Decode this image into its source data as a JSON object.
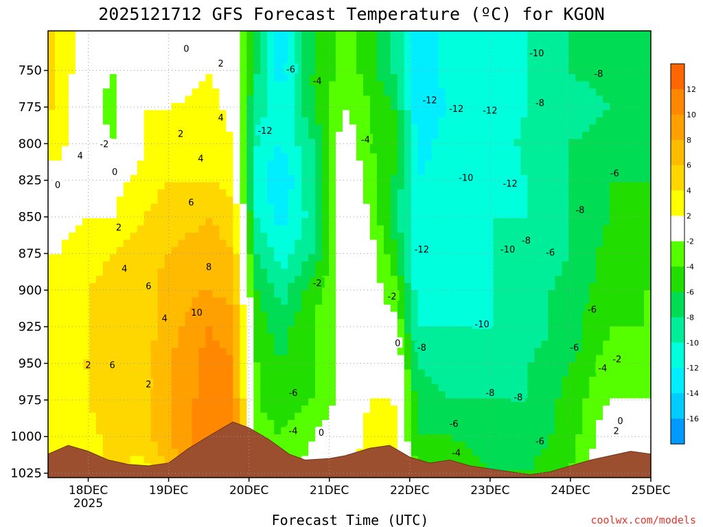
{
  "chart_data": {
    "type": "contour",
    "title": "2025121712 GFS Forecast Temperature (ºC) for KGON",
    "xlabel": "Forecast Time (UTC)",
    "ylabel": "",
    "credit": "coolwx.com/models",
    "x_ticks": [
      {
        "label": "18DEC",
        "sub": "2025",
        "day": 18
      },
      {
        "label": "19DEC",
        "sub": "",
        "day": 19
      },
      {
        "label": "20DEC",
        "sub": "",
        "day": 20
      },
      {
        "label": "21DEC",
        "sub": "",
        "day": 21
      },
      {
        "label": "22DEC",
        "sub": "",
        "day": 22
      },
      {
        "label": "23DEC",
        "sub": "",
        "day": 23
      },
      {
        "label": "24DEC",
        "sub": "",
        "day": 24
      },
      {
        "label": "25DEC",
        "sub": "",
        "day": 25
      }
    ],
    "xlim": [
      17.5,
      25.0
    ],
    "y_ticks": [
      750,
      775,
      800,
      825,
      850,
      875,
      900,
      925,
      950,
      975,
      1000,
      1025
    ],
    "ylim": [
      1028,
      723
    ],
    "colorbar": {
      "levels": [
        12,
        10,
        8,
        6,
        4,
        2,
        -2,
        -4,
        -6,
        -8,
        -10,
        -12,
        -14,
        -16
      ],
      "bands": [
        {
          "lo": 12,
          "hi": 14,
          "color": "#ff6600"
        },
        {
          "lo": 10,
          "hi": 12,
          "color": "#ff8800"
        },
        {
          "lo": 8,
          "hi": 10,
          "color": "#ffa000"
        },
        {
          "lo": 6,
          "hi": 8,
          "color": "#ffbb00"
        },
        {
          "lo": 4,
          "hi": 6,
          "color": "#ffd700"
        },
        {
          "lo": 2,
          "hi": 4,
          "color": "#ffff00"
        },
        {
          "lo": -2,
          "hi": 2,
          "color": "#ffffff"
        },
        {
          "lo": -4,
          "hi": -2,
          "color": "#55ff00"
        },
        {
          "lo": -6,
          "hi": -4,
          "color": "#22dd00"
        },
        {
          "lo": -8,
          "hi": -6,
          "color": "#00dd55"
        },
        {
          "lo": -10,
          "hi": -8,
          "color": "#00ee99"
        },
        {
          "lo": -12,
          "hi": -10,
          "color": "#00ffdd"
        },
        {
          "lo": -14,
          "hi": -12,
          "color": "#00eeff"
        },
        {
          "lo": -16,
          "hi": -14,
          "color": "#00ccff"
        },
        {
          "lo": -18,
          "hi": -16,
          "color": "#0099ff"
        }
      ]
    },
    "series": [
      {
        "name": "temperature_column",
        "x": 17.6,
        "values": [
          4,
          4,
          3,
          1,
          1,
          2,
          3,
          3,
          3,
          3,
          2,
          2
        ]
      },
      {
        "name": "temperature_column",
        "x": 18.0,
        "values": [
          0,
          -1,
          0,
          1,
          2,
          3,
          4,
          4,
          4,
          4,
          3,
          3
        ]
      },
      {
        "name": "temperature_column",
        "x": 18.3,
        "values": [
          -2,
          -3,
          -2,
          1,
          2,
          4,
          5,
          5,
          5,
          6,
          5,
          4
        ]
      },
      {
        "name": "temperature_column",
        "x": 18.7,
        "values": [
          1,
          2,
          2,
          3,
          4,
          5,
          5,
          5,
          5,
          5,
          5,
          3
        ]
      },
      {
        "name": "temperature_column",
        "x": 19.0,
        "values": [
          0,
          2,
          3,
          4,
          5,
          6,
          7,
          7,
          8,
          8,
          8,
          6
        ]
      },
      {
        "name": "temperature_column",
        "x": 19.5,
        "values": [
          2,
          3,
          4,
          4,
          6,
          7,
          8,
          10,
          11,
          11,
          12,
          10
        ]
      },
      {
        "name": "temperature_column",
        "x": 19.8,
        "values": [
          0,
          1,
          2,
          3,
          5,
          6,
          7,
          9,
          10,
          10,
          12,
          11
        ]
      },
      {
        "name": "temperature_column",
        "x": 20.1,
        "values": [
          -8,
          -9,
          -10,
          -11,
          -10,
          -8,
          -6,
          -5,
          -4,
          -4,
          -3,
          -2
        ]
      },
      {
        "name": "temperature_column",
        "x": 20.4,
        "values": [
          -13,
          -12,
          -12,
          -14,
          -13,
          -11,
          -9,
          -7,
          -6,
          -5,
          -4,
          -3
        ]
      },
      {
        "name": "temperature_column",
        "x": 20.8,
        "values": [
          -6,
          -6,
          -8,
          -8,
          -9,
          -8,
          -5,
          -4,
          -4,
          -4,
          -2,
          -1
        ]
      },
      {
        "name": "temperature_column",
        "x": 21.2,
        "values": [
          -3,
          -2,
          0,
          1,
          1,
          0,
          -1,
          -1,
          -1,
          -1,
          0,
          2
        ]
      },
      {
        "name": "temperature_column",
        "x": 21.5,
        "values": [
          -5,
          -4,
          -4,
          -3,
          -2,
          -1,
          -1,
          -2,
          0,
          2,
          3,
          3
        ]
      },
      {
        "name": "temperature_column",
        "x": 21.8,
        "values": [
          -8,
          -6,
          -5,
          -6,
          -7,
          -5,
          -3,
          -1,
          1,
          2,
          3,
          3
        ]
      },
      {
        "name": "temperature_column",
        "x": 22.1,
        "values": [
          -14,
          -13,
          -13,
          -12,
          -12,
          -12,
          -11,
          -10,
          -8,
          -7,
          -6,
          -4
        ]
      },
      {
        "name": "temperature_column",
        "x": 22.5,
        "values": [
          -11,
          -12,
          -11,
          -11,
          -11,
          -12,
          -11,
          -10,
          -9,
          -8,
          -6,
          -4
        ]
      },
      {
        "name": "temperature_column",
        "x": 23.0,
        "values": [
          -11,
          -12,
          -12,
          -11,
          -10,
          -10,
          -10,
          -10,
          -9,
          -8,
          -7,
          -6
        ]
      },
      {
        "name": "temperature_column",
        "x": 23.5,
        "values": [
          -10,
          -10,
          -9,
          -10,
          -10,
          -10,
          -9,
          -9,
          -8,
          -8,
          -7,
          -6
        ]
      },
      {
        "name": "temperature_column",
        "x": 24.0,
        "values": [
          -8,
          -9,
          -8,
          -8,
          -8,
          -8,
          -7,
          -7,
          -6,
          -5,
          -5,
          -4
        ]
      },
      {
        "name": "temperature_column",
        "x": 24.5,
        "values": [
          -7,
          -8,
          -7,
          -6,
          -6,
          -5,
          -5,
          -4,
          -3,
          -2,
          0,
          1
        ]
      },
      {
        "name": "temperature_column",
        "x": 24.9,
        "values": [
          -7,
          -8,
          -7,
          -6,
          -5,
          -5,
          -4,
          -4,
          -3,
          -2,
          0,
          1
        ]
      }
    ],
    "contour_labels": [
      {
        "text": "0",
        "x": 17.62,
        "p": 828
      },
      {
        "text": "4",
        "x": 17.9,
        "p": 808
      },
      {
        "text": "-2",
        "x": 18.2,
        "p": 800
      },
      {
        "text": "0",
        "x": 18.33,
        "p": 819
      },
      {
        "text": "2",
        "x": 18.38,
        "p": 857
      },
      {
        "text": "4",
        "x": 18.45,
        "p": 885
      },
      {
        "text": "6",
        "x": 18.75,
        "p": 897
      },
      {
        "text": "4",
        "x": 18.95,
        "p": 919
      },
      {
        "text": "2",
        "x": 18.0,
        "p": 951
      },
      {
        "text": "6",
        "x": 18.3,
        "p": 951
      },
      {
        "text": "2",
        "x": 18.75,
        "p": 964
      },
      {
        "text": "0",
        "x": 19.22,
        "p": 735
      },
      {
        "text": "2",
        "x": 19.65,
        "p": 745
      },
      {
        "text": "4",
        "x": 19.65,
        "p": 782
      },
      {
        "text": "2",
        "x": 19.15,
        "p": 793
      },
      {
        "text": "4",
        "x": 19.4,
        "p": 810
      },
      {
        "text": "6",
        "x": 19.28,
        "p": 840
      },
      {
        "text": "8",
        "x": 19.5,
        "p": 884
      },
      {
        "text": "10",
        "x": 19.35,
        "p": 915
      },
      {
        "text": "-6",
        "x": 20.52,
        "p": 749
      },
      {
        "text": "-12",
        "x": 20.2,
        "p": 791
      },
      {
        "text": "-4",
        "x": 20.85,
        "p": 757
      },
      {
        "text": "-4",
        "x": 21.45,
        "p": 797
      },
      {
        "text": "-2",
        "x": 20.85,
        "p": 895
      },
      {
        "text": "-2",
        "x": 21.78,
        "p": 904
      },
      {
        "text": "0",
        "x": 21.85,
        "p": 936
      },
      {
        "text": "-6",
        "x": 20.55,
        "p": 970
      },
      {
        "text": "-4",
        "x": 20.55,
        "p": 996
      },
      {
        "text": "0",
        "x": 20.9,
        "p": 997
      },
      {
        "text": "-12",
        "x": 22.25,
        "p": 770
      },
      {
        "text": "-12",
        "x": 22.58,
        "p": 776
      },
      {
        "text": "-12",
        "x": 23.0,
        "p": 777
      },
      {
        "text": "-10",
        "x": 23.58,
        "p": 738
      },
      {
        "text": "-8",
        "x": 24.35,
        "p": 752
      },
      {
        "text": "-8",
        "x": 23.62,
        "p": 772
      },
      {
        "text": "-10",
        "x": 22.7,
        "p": 823
      },
      {
        "text": "-12",
        "x": 23.25,
        "p": 827
      },
      {
        "text": "-6",
        "x": 24.55,
        "p": 820
      },
      {
        "text": "-8",
        "x": 24.12,
        "p": 845
      },
      {
        "text": "-12",
        "x": 22.15,
        "p": 872
      },
      {
        "text": "-10",
        "x": 23.22,
        "p": 872
      },
      {
        "text": "-8",
        "x": 23.45,
        "p": 866
      },
      {
        "text": "-6",
        "x": 23.75,
        "p": 874
      },
      {
        "text": "-10",
        "x": 22.9,
        "p": 923
      },
      {
        "text": "-8",
        "x": 22.15,
        "p": 939
      },
      {
        "text": "-6",
        "x": 24.27,
        "p": 913
      },
      {
        "text": "-6",
        "x": 24.05,
        "p": 939
      },
      {
        "text": "-4",
        "x": 24.4,
        "p": 953
      },
      {
        "text": "-2",
        "x": 24.58,
        "p": 947
      },
      {
        "text": "-8",
        "x": 23.0,
        "p": 970
      },
      {
        "text": "-8",
        "x": 23.35,
        "p": 973
      },
      {
        "text": "-6",
        "x": 22.55,
        "p": 991
      },
      {
        "text": "-4",
        "x": 22.58,
        "p": 1011
      },
      {
        "text": "-6",
        "x": 23.62,
        "p": 1003
      },
      {
        "text": "0",
        "x": 24.62,
        "p": 989
      },
      {
        "text": "2",
        "x": 24.57,
        "p": 996
      }
    ],
    "terrain_surface_hpa": [
      [
        17.5,
        1012
      ],
      [
        17.75,
        1006
      ],
      [
        18.0,
        1010
      ],
      [
        18.25,
        1016
      ],
      [
        18.5,
        1019
      ],
      [
        18.75,
        1020
      ],
      [
        19.0,
        1018
      ],
      [
        19.25,
        1008
      ],
      [
        19.55,
        998
      ],
      [
        19.8,
        990
      ],
      [
        20.0,
        994
      ],
      [
        20.25,
        1002
      ],
      [
        20.5,
        1012
      ],
      [
        20.7,
        1016
      ],
      [
        21.0,
        1015
      ],
      [
        21.2,
        1013
      ],
      [
        21.5,
        1008
      ],
      [
        21.75,
        1006
      ],
      [
        22.0,
        1014
      ],
      [
        22.25,
        1018
      ],
      [
        22.5,
        1016
      ],
      [
        22.75,
        1020
      ],
      [
        23.0,
        1022
      ],
      [
        23.25,
        1024
      ],
      [
        23.5,
        1026
      ],
      [
        23.75,
        1024
      ],
      [
        24.0,
        1020
      ],
      [
        24.25,
        1016
      ],
      [
        24.5,
        1013
      ],
      [
        24.75,
        1010
      ],
      [
        25.0,
        1012
      ]
    ]
  }
}
